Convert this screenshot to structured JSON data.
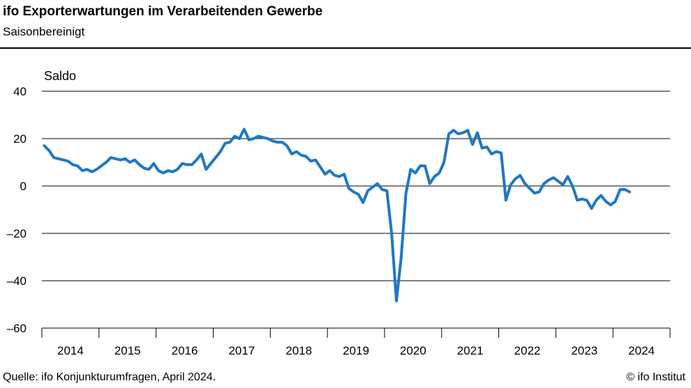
{
  "header": {
    "title": "ifo Exporterwartungen im Verarbeitenden Gewerbe",
    "subtitle": "Saisonbereinigt"
  },
  "footer": {
    "source": "Quelle:  ifo Konjunkturumfragen,  April 2024.",
    "copyright": "© ifo Institut"
  },
  "chart_data": {
    "type": "line",
    "title": "ifo Exporterwartungen im Verarbeitenden Gewerbe",
    "subtitle": "Saisonbereinigt",
    "ylabel": "Saldo",
    "xlabel": "",
    "ylim": [
      -60,
      40
    ],
    "yticks": [
      40,
      20,
      0,
      -20,
      -40,
      -60
    ],
    "ytick_labels": [
      "40",
      "20",
      "0",
      "–20",
      "–40",
      "–60"
    ],
    "xticks": [
      "2014",
      "2015",
      "2016",
      "2017",
      "2018",
      "2019",
      "2020",
      "2021",
      "2022",
      "2023",
      "2024"
    ],
    "grid": true,
    "line_color": "#1f78c1",
    "series": [
      {
        "x": [
          "2014-01",
          "2014-02",
          "2014-03",
          "2014-04",
          "2014-05",
          "2014-06",
          "2014-07",
          "2014-08",
          "2014-09",
          "2014-10",
          "2014-11",
          "2014-12",
          "2015-01",
          "2015-02",
          "2015-03",
          "2015-04",
          "2015-05",
          "2015-06",
          "2015-07",
          "2015-08",
          "2015-09",
          "2015-10",
          "2015-11",
          "2015-12",
          "2016-01",
          "2016-02",
          "2016-03",
          "2016-04",
          "2016-05",
          "2016-06",
          "2016-07",
          "2016-08",
          "2016-09",
          "2016-10",
          "2016-11",
          "2016-12",
          "2017-01",
          "2017-02",
          "2017-03",
          "2017-04",
          "2017-05",
          "2017-06",
          "2017-07",
          "2017-08",
          "2017-09",
          "2017-10",
          "2017-11",
          "2017-12",
          "2018-01",
          "2018-02",
          "2018-03",
          "2018-04",
          "2018-05",
          "2018-06",
          "2018-07",
          "2018-08",
          "2018-09",
          "2018-10",
          "2018-11",
          "2018-12",
          "2019-01",
          "2019-02",
          "2019-03",
          "2019-04",
          "2019-05",
          "2019-06",
          "2019-07",
          "2019-08",
          "2019-09",
          "2019-10",
          "2019-11",
          "2019-12",
          "2020-01",
          "2020-02",
          "2020-03",
          "2020-04",
          "2020-05",
          "2020-06",
          "2020-07",
          "2020-08",
          "2020-09",
          "2020-10",
          "2020-11",
          "2020-12",
          "2021-01",
          "2021-02",
          "2021-03",
          "2021-04",
          "2021-05",
          "2021-06",
          "2021-07",
          "2021-08",
          "2021-09",
          "2021-10",
          "2021-11",
          "2021-12",
          "2022-01",
          "2022-02",
          "2022-03",
          "2022-04",
          "2022-05",
          "2022-06",
          "2022-07",
          "2022-08",
          "2022-09",
          "2022-10",
          "2022-11",
          "2022-12",
          "2023-01",
          "2023-02",
          "2023-03",
          "2023-04",
          "2023-05",
          "2023-06",
          "2023-07",
          "2023-08",
          "2023-09",
          "2023-10",
          "2023-11",
          "2023-12",
          "2024-01",
          "2024-02",
          "2024-03",
          "2024-04"
        ],
        "values": [
          17,
          15,
          12,
          11.5,
          11,
          10.5,
          9,
          8.5,
          6.5,
          7,
          6,
          7,
          8.5,
          10,
          12,
          11.5,
          11,
          11.5,
          10,
          11,
          9,
          7.5,
          7,
          9.5,
          6.5,
          5.5,
          6.5,
          6,
          7,
          9.5,
          9,
          9,
          11,
          13.5,
          7,
          9.5,
          12,
          14.5,
          18,
          18.5,
          21,
          20,
          24,
          19.5,
          20,
          21,
          20.5,
          20,
          19,
          18.5,
          18.5,
          17,
          13.5,
          14.5,
          13,
          12.5,
          10.5,
          11,
          8,
          5,
          6.5,
          4.5,
          4,
          5,
          -1,
          -2.5,
          -3.5,
          -7,
          -2,
          -0.5,
          1,
          -1.5,
          -2,
          -20,
          -48.5,
          -30,
          -3,
          7,
          5.5,
          8.5,
          8.5,
          1,
          4,
          5.5,
          10,
          22,
          23.5,
          22,
          22.5,
          23.5,
          17.5,
          22.5,
          16,
          16.5,
          13.5,
          14.5,
          14,
          -6,
          0.5,
          3,
          4.5,
          1,
          -1,
          -3,
          -2.5,
          1,
          2.5,
          3.5,
          2,
          0.5,
          4,
          0,
          -6,
          -5.5,
          -6,
          -9.5,
          -6,
          -4,
          -6.5,
          -8,
          -6.5,
          -1.5,
          -1.5,
          -2.5
        ]
      }
    ]
  }
}
